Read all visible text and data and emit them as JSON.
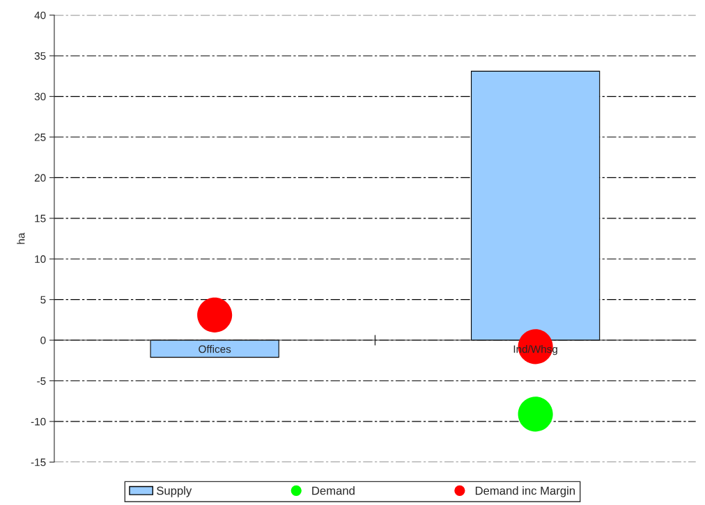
{
  "chart_data": {
    "type": "bar",
    "categories": [
      "Offices",
      "Ind/Whsg"
    ],
    "ylabel": "ha",
    "ylim": [
      -15,
      40
    ],
    "yticks": [
      -15,
      -10,
      -5,
      0,
      5,
      10,
      15,
      20,
      25,
      30,
      35,
      40
    ],
    "grid": "y",
    "legend": "bottom",
    "series": [
      {
        "name": "Supply",
        "color": "#99ccff",
        "values": [
          -2.1,
          33.1
        ]
      },
      {
        "name": "Demand",
        "type": "scatter",
        "marker": "circle",
        "color": "#00ff00",
        "values": [
          null,
          -9.1
        ]
      },
      {
        "name": "Demand inc Margin",
        "type": "scatter",
        "marker": "circle",
        "color": "#ff0000",
        "values": [
          3.1,
          -0.8
        ]
      }
    ]
  }
}
